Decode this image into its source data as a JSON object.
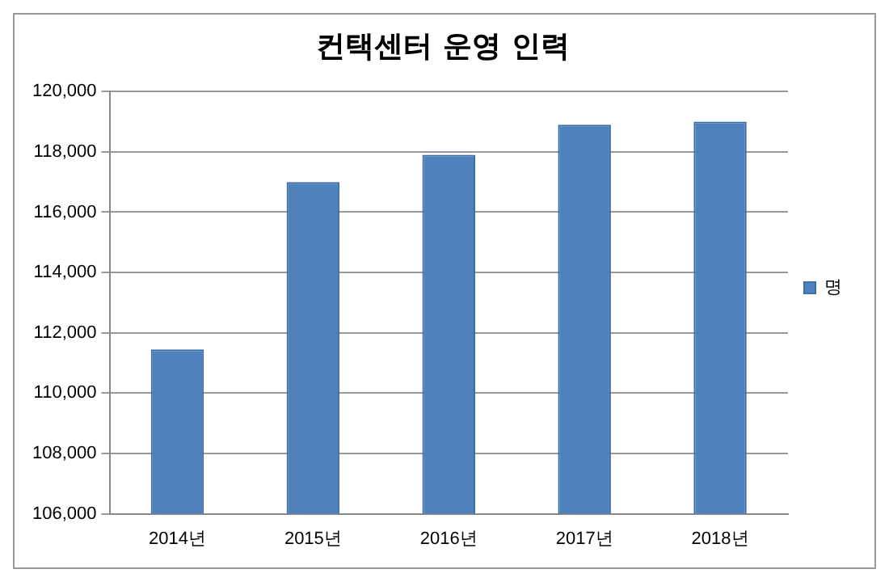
{
  "chart_data": {
    "type": "bar",
    "title": "컨택센터 운영 인력",
    "categories": [
      "2014년",
      "2015년",
      "2016년",
      "2017년",
      "2018년"
    ],
    "series": [
      {
        "name": "명",
        "color": "#4f81bd",
        "values": [
          111450,
          117000,
          117900,
          118900,
          119000
        ]
      }
    ],
    "ylim": [
      106000,
      120000
    ],
    "yticks": [
      {
        "value": 106000,
        "label": "106,000"
      },
      {
        "value": 108000,
        "label": "108,000"
      },
      {
        "value": 110000,
        "label": "110,000"
      },
      {
        "value": 112000,
        "label": "112,000"
      },
      {
        "value": 114000,
        "label": "114,000"
      },
      {
        "value": 116000,
        "label": "116,000"
      },
      {
        "value": 118000,
        "label": "118,000"
      },
      {
        "value": 120000,
        "label": "120,000"
      }
    ],
    "grid": "y",
    "legend": "right"
  }
}
